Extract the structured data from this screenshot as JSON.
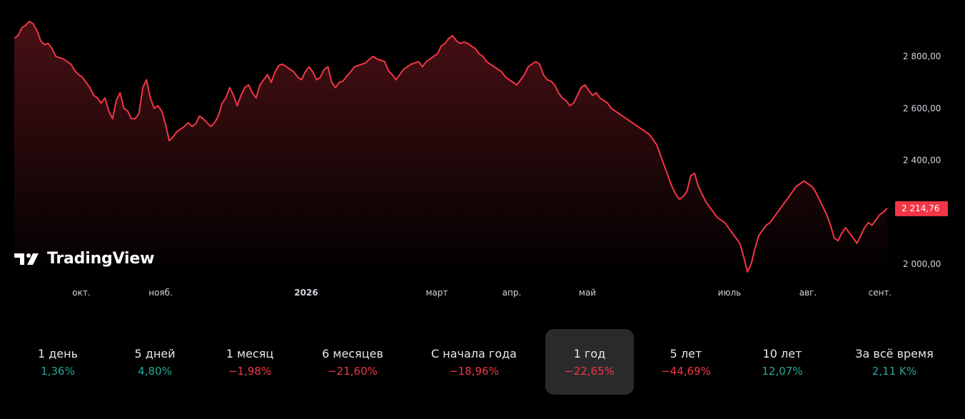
{
  "chart_data": {
    "type": "area",
    "title": "",
    "xlabel": "",
    "ylabel": "",
    "y_ticks": [
      "2 800,00",
      "2 600,00",
      "2 400,00",
      "2 000,00"
    ],
    "y_tick_values": [
      2800,
      2600,
      2400,
      2000
    ],
    "ylim": [
      1950,
      2950
    ],
    "x_ticks": [
      {
        "label": "окт.",
        "bold": false
      },
      {
        "label": "нояб.",
        "bold": false
      },
      {
        "label": "2026",
        "bold": true
      },
      {
        "label": "март",
        "bold": false
      },
      {
        "label": "апр.",
        "bold": false
      },
      {
        "label": "май",
        "bold": false
      },
      {
        "label": "июль",
        "bold": false
      },
      {
        "label": "авг.",
        "bold": false
      },
      {
        "label": "сент.",
        "bold": false
      }
    ],
    "last_price_label": "2 214,76",
    "last_value": 2214.76,
    "line_color": "#f23645",
    "series": [
      {
        "values": [
          2870,
          2880,
          2910,
          2920,
          2935,
          2925,
          2900,
          2860,
          2845,
          2850,
          2830,
          2800,
          2795,
          2790,
          2780,
          2770,
          2745,
          2730,
          2720,
          2700,
          2680,
          2650,
          2640,
          2620,
          2640,
          2590,
          2560,
          2630,
          2660,
          2600,
          2590,
          2560,
          2560,
          2580,
          2680,
          2710,
          2640,
          2600,
          2610,
          2590,
          2540,
          2475,
          2490,
          2510,
          2520,
          2530,
          2545,
          2530,
          2540,
          2570,
          2560,
          2545,
          2530,
          2545,
          2570,
          2620,
          2640,
          2680,
          2650,
          2610,
          2650,
          2680,
          2690,
          2660,
          2640,
          2690,
          2710,
          2730,
          2700,
          2740,
          2765,
          2770,
          2760,
          2750,
          2740,
          2720,
          2710,
          2740,
          2760,
          2740,
          2710,
          2720,
          2750,
          2760,
          2700,
          2680,
          2700,
          2705,
          2725,
          2740,
          2760,
          2765,
          2770,
          2775,
          2790,
          2800,
          2790,
          2785,
          2780,
          2745,
          2730,
          2710,
          2730,
          2750,
          2760,
          2770,
          2775,
          2780,
          2760,
          2780,
          2790,
          2800,
          2810,
          2840,
          2850,
          2870,
          2880,
          2860,
          2850,
          2855,
          2850,
          2840,
          2830,
          2810,
          2800,
          2780,
          2770,
          2760,
          2750,
          2740,
          2720,
          2710,
          2700,
          2690,
          2710,
          2730,
          2760,
          2770,
          2780,
          2770,
          2730,
          2710,
          2705,
          2690,
          2660,
          2640,
          2630,
          2610,
          2620,
          2650,
          2680,
          2690,
          2670,
          2650,
          2660,
          2640,
          2630,
          2620,
          2600,
          2590,
          2580,
          2570,
          2560,
          2550,
          2540,
          2530,
          2520,
          2510,
          2500,
          2480,
          2460,
          2420,
          2380,
          2340,
          2300,
          2270,
          2250,
          2260,
          2280,
          2340,
          2350,
          2300,
          2270,
          2240,
          2220,
          2200,
          2180,
          2170,
          2160,
          2140,
          2120,
          2100,
          2080,
          2030,
          1970,
          2000,
          2060,
          2110,
          2130,
          2150,
          2160,
          2180,
          2200,
          2220,
          2240,
          2260,
          2280,
          2300,
          2310,
          2320,
          2310,
          2300,
          2280,
          2250,
          2220,
          2190,
          2150,
          2100,
          2090,
          2120,
          2140,
          2120,
          2100,
          2080,
          2110,
          2140,
          2160,
          2150,
          2170,
          2190,
          2200,
          2214.76
        ]
      }
    ]
  },
  "branding": {
    "logo_text": "TradingView"
  },
  "periods": [
    {
      "label": "1 день",
      "value": "1,36%",
      "trend": "up",
      "active": false
    },
    {
      "label": "5 дней",
      "value": "4,80%",
      "trend": "up",
      "active": false
    },
    {
      "label": "1 месяц",
      "value": "−1,98%",
      "trend": "down",
      "active": false
    },
    {
      "label": "6 месяцев",
      "value": "−21,60%",
      "trend": "down",
      "active": false
    },
    {
      "label": "С начала года",
      "value": "−18,96%",
      "trend": "down",
      "active": false
    },
    {
      "label": "1 год",
      "value": "−22,65%",
      "trend": "down",
      "active": true
    },
    {
      "label": "5 лет",
      "value": "−44,69%",
      "trend": "down",
      "active": false
    },
    {
      "label": "10 лет",
      "value": "12,07%",
      "trend": "up",
      "active": false
    },
    {
      "label": "За всё время",
      "value": "2,11 K%",
      "trend": "up",
      "active": false
    }
  ],
  "colors": {
    "up": "#26a69a",
    "down": "#f23645",
    "price_tag_bg": "#f23645"
  }
}
